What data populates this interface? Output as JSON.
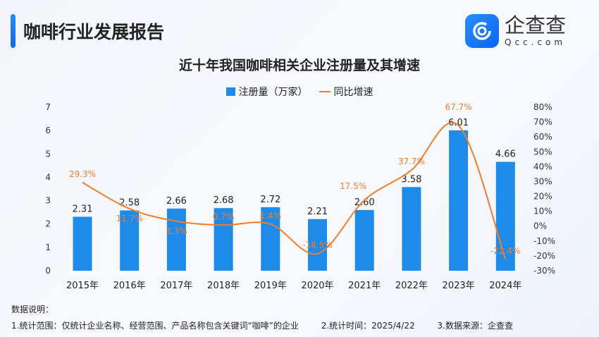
{
  "header": {
    "title": "咖啡行业发展报告",
    "logo_cn": "企查查",
    "logo_en": "Qcc.com"
  },
  "chart_data": {
    "type": "bar+line",
    "title": "近十年我国咖啡相关企业注册量及其增速",
    "categories": [
      "2015年",
      "2016年",
      "2017年",
      "2018年",
      "2019年",
      "2020年",
      "2021年",
      "2022年",
      "2023年",
      "2024年"
    ],
    "series": [
      {
        "name": "注册量（万家）",
        "type": "bar",
        "axis": "left",
        "color": "#1e8be8",
        "values": [
          2.31,
          2.58,
          2.66,
          2.68,
          2.72,
          2.21,
          2.6,
          3.58,
          6.01,
          4.66
        ],
        "labels": [
          "2.31",
          "2.58",
          "2.66",
          "2.68",
          "2.72",
          "2.21",
          "2.60",
          "3.58",
          "6.01",
          "4.66"
        ]
      },
      {
        "name": "同比增速",
        "type": "line",
        "axis": "right",
        "color": "#f07d2c",
        "values": [
          29.3,
          11.7,
          3.3,
          0.7,
          1.4,
          -18.5,
          17.5,
          37.7,
          67.7,
          -22.4
        ],
        "labels": [
          "29.3%",
          "11.7%",
          "3.3%",
          "0.7%",
          "1.4%",
          "-18.5%",
          "17.5%",
          "37.7%",
          "67.7%",
          "-22.4%"
        ]
      }
    ],
    "left_axis": {
      "min": 0,
      "max": 7,
      "ticks": [
        "0",
        "1",
        "2",
        "3",
        "4",
        "5",
        "6",
        "7"
      ]
    },
    "right_axis": {
      "min": -30,
      "max": 80,
      "ticks": [
        "-30%",
        "-20%",
        "-10%",
        "0%",
        "10%",
        "20%",
        "30%",
        "40%",
        "50%",
        "60%",
        "70%",
        "80%"
      ]
    },
    "legend_position": "top-center",
    "grid": false
  },
  "notes": {
    "heading": "数据说明：",
    "items": [
      "1.统计范围：仅统计企业名称、经营范围、产品名称包含关键词“咖啡”的企业",
      "2.统计时间：2025/4/22",
      "3.数据来源：企查查"
    ]
  }
}
